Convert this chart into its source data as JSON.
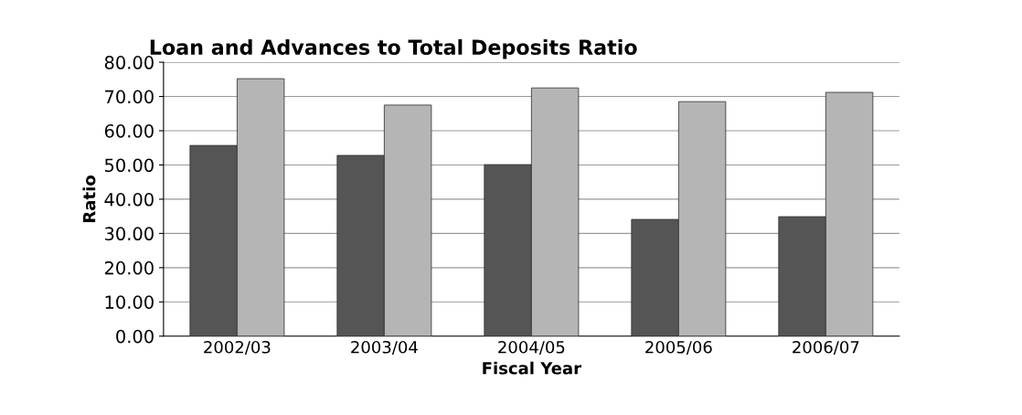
{
  "chart_data": {
    "type": "bar",
    "title": "Loan and Advances to Total Deposits Ratio",
    "xlabel": "Fiscal Year",
    "ylabel": "Ratio",
    "categories": [
      "2002/03",
      "2003/04",
      "2004/05",
      "2005/06",
      "2006/07"
    ],
    "series": [
      {
        "color": "#555555",
        "values": [
          55.7,
          52.8,
          50.1,
          34.1,
          34.9
        ]
      },
      {
        "color": "#b5b5b5",
        "values": [
          75.2,
          67.5,
          72.5,
          68.5,
          71.2
        ]
      }
    ],
    "ylim": [
      0,
      80
    ],
    "yticks": [
      {
        "value": 0,
        "label": "0.00"
      },
      {
        "value": 10,
        "label": "10.00"
      },
      {
        "value": 20,
        "label": "20.00"
      },
      {
        "value": 30,
        "label": "30.00"
      },
      {
        "value": 40,
        "label": "40.00"
      },
      {
        "value": 50,
        "label": "50.00"
      },
      {
        "value": 60,
        "label": "60.00"
      },
      {
        "value": 70,
        "label": "70.00"
      },
      {
        "value": 80,
        "label": "80.00"
      }
    ],
    "grid": "y"
  }
}
